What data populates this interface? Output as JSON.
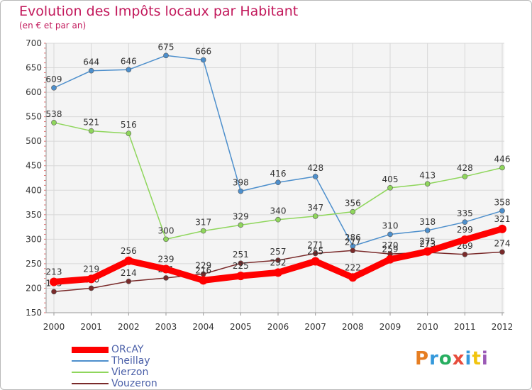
{
  "header": {
    "title": "Evolution des Impôts locaux par Habitant",
    "subtitle": "(en € et par an)"
  },
  "logo": {
    "text": "Proxiti",
    "letter_colors": [
      "#e67e22",
      "#3498db",
      "#27ae60",
      "#e74c3c",
      "#3498db",
      "#f1c40f",
      "#9b59b6"
    ]
  },
  "chart_data": {
    "type": "line",
    "x": [
      "2000",
      "2001",
      "2002",
      "2003",
      "2004",
      "2005",
      "2006",
      "2007",
      "2008",
      "2009",
      "2010",
      "2011",
      "2012"
    ],
    "ylim": [
      150,
      700
    ],
    "yticks": [
      150,
      200,
      250,
      300,
      350,
      400,
      450,
      500,
      550,
      600,
      650,
      700
    ],
    "grid": true,
    "legend_position": "bottom-left",
    "series": [
      {
        "name": "ORcAY",
        "color": "#ff0000",
        "values": [
          213,
          219,
          256,
          239,
          216,
          225,
          232,
          255,
          222,
          259,
          275,
          299,
          321
        ]
      },
      {
        "name": "Theillay",
        "color": "#4d8fcc",
        "values": [
          609,
          644,
          646,
          675,
          666,
          398,
          416,
          428,
          286,
          310,
          318,
          335,
          358
        ]
      },
      {
        "name": "Vierzon",
        "color": "#8fd65c",
        "values": [
          538,
          521,
          516,
          300,
          317,
          329,
          340,
          347,
          356,
          405,
          413,
          428,
          446
        ]
      },
      {
        "name": "Vouzeron",
        "color": "#7a2a2a",
        "values": [
          193,
          200,
          214,
          221,
          229,
          251,
          257,
          271,
          277,
          270,
          273,
          269,
          274
        ]
      }
    ]
  }
}
